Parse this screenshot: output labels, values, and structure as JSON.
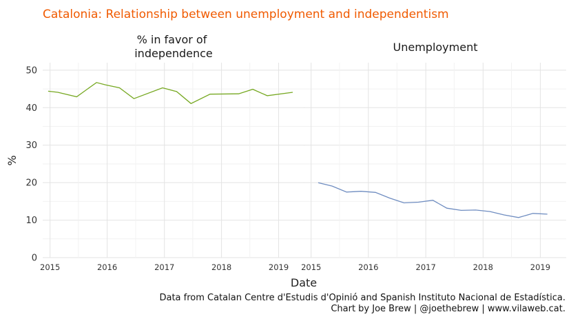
{
  "chart_data": {
    "type": "line",
    "title": "Catalonia: Relationship between unemployment and independentism",
    "xlabel": "Date",
    "ylabel": "%",
    "ylim": [
      0,
      52
    ],
    "yticks": [
      0,
      10,
      20,
      30,
      40,
      50
    ],
    "xticks": [
      "2015",
      "2016",
      "2017",
      "2018",
      "2019"
    ],
    "grid": true,
    "caption": [
      "Data from Catalan Centre d'Estudis d'Opinió and Spanish Instituto Nacional de Estadística.",
      "Chart by Joe Brew | @joethebrew | www.vilaweb.cat."
    ],
    "panels": [
      {
        "name": "% in favor of\nindependence",
        "color": "#76a821",
        "xlim": [
          "2014-11-15",
          "2019-06-15"
        ],
        "points": [
          [
            "2014-12-20",
            44.4
          ],
          [
            "2015-02-20",
            44.1
          ],
          [
            "2015-06-20",
            42.9
          ],
          [
            "2015-10-25",
            46.7
          ],
          [
            "2015-12-20",
            46.1
          ],
          [
            "2016-03-20",
            45.3
          ],
          [
            "2016-06-20",
            42.4
          ],
          [
            "2016-12-20",
            45.3
          ],
          [
            "2017-03-20",
            44.3
          ],
          [
            "2017-06-20",
            41.1
          ],
          [
            "2017-10-20",
            43.6
          ],
          [
            "2018-04-20",
            43.7
          ],
          [
            "2018-07-20",
            44.9
          ],
          [
            "2018-10-20",
            43.2
          ],
          [
            "2019-04-01",
            44.1
          ]
        ]
      },
      {
        "name": "Unemployment",
        "color": "#6e8cc0",
        "xlim": [
          "2014-11-15",
          "2019-06-15"
        ],
        "points": [
          [
            "2015-02-15",
            20.0
          ],
          [
            "2015-05-15",
            19.1
          ],
          [
            "2015-08-15",
            17.5
          ],
          [
            "2015-11-15",
            17.7
          ],
          [
            "2016-02-15",
            17.4
          ],
          [
            "2016-05-15",
            15.9
          ],
          [
            "2016-08-15",
            14.6
          ],
          [
            "2016-11-15",
            14.8
          ],
          [
            "2017-02-15",
            15.3
          ],
          [
            "2017-05-15",
            13.2
          ],
          [
            "2017-08-15",
            12.6
          ],
          [
            "2017-11-15",
            12.7
          ],
          [
            "2018-02-15",
            12.3
          ],
          [
            "2018-05-15",
            11.4
          ],
          [
            "2018-08-15",
            10.7
          ],
          [
            "2018-11-15",
            11.8
          ],
          [
            "2019-02-15",
            11.6
          ]
        ]
      }
    ]
  }
}
